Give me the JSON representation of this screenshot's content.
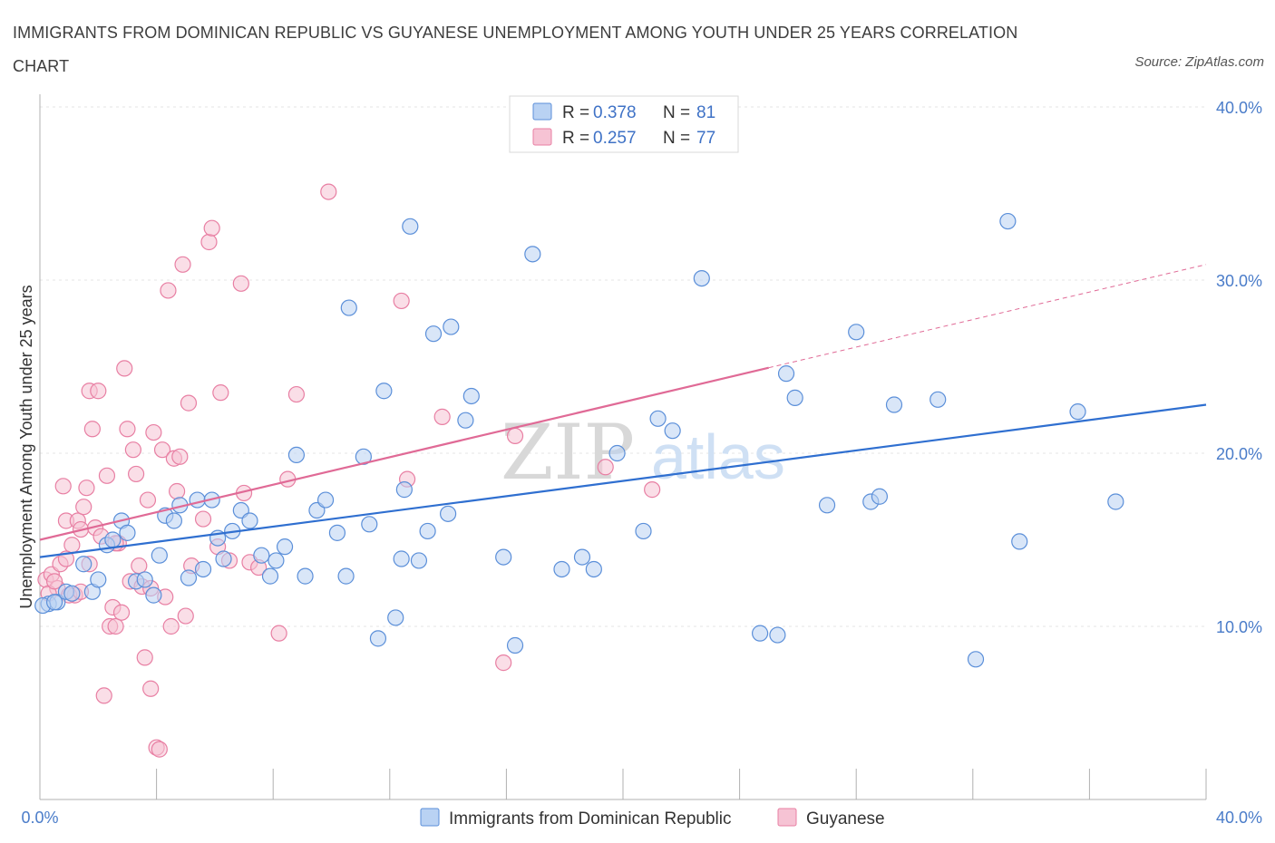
{
  "chart_data": {
    "type": "scatter",
    "title": "IMMIGRANTS FROM DOMINICAN REPUBLIC VS GUYANESE UNEMPLOYMENT AMONG YOUTH UNDER 25 YEARS CORRELATION CHART",
    "source": "Source: ZipAtlas.com",
    "xlabel": "",
    "ylabel": "Unemployment Among Youth under 25 years",
    "xlim": [
      0,
      40
    ],
    "ylim": [
      0,
      40
    ],
    "x_tick_labels": [
      "0.0%",
      "40.0%"
    ],
    "y_ticks": [
      10,
      20,
      30,
      40
    ],
    "y_tick_labels": [
      "10.0%",
      "20.0%",
      "30.0%",
      "40.0%"
    ],
    "grid": true,
    "watermark": {
      "zip": "ZIP",
      "atlas": "atlas"
    },
    "legend": {
      "r_label": "R =",
      "n_label": "N =",
      "entries": [
        {
          "r": "0.378",
          "n": "81"
        },
        {
          "r": "0.257",
          "n": "77"
        }
      ]
    },
    "series": [
      {
        "name": "Immigrants from Dominican Republic",
        "color": "#5b8fd9",
        "fill": "#b9d2f3",
        "trend": {
          "x0": 0,
          "y0": 14.0,
          "x1": 40,
          "y1": 22.8,
          "dash_from": null
        },
        "points": [
          [
            0.3,
            11.3
          ],
          [
            0.6,
            11.4
          ],
          [
            0.9,
            12.0
          ],
          [
            1.1,
            11.9
          ],
          [
            1.5,
            13.6
          ],
          [
            1.8,
            12.0
          ],
          [
            2.0,
            12.7
          ],
          [
            2.3,
            14.7
          ],
          [
            2.5,
            15.0
          ],
          [
            2.8,
            16.1
          ],
          [
            3.0,
            15.4
          ],
          [
            3.3,
            12.6
          ],
          [
            3.6,
            12.7
          ],
          [
            3.9,
            11.8
          ],
          [
            4.1,
            14.1
          ],
          [
            4.3,
            16.4
          ],
          [
            4.6,
            16.1
          ],
          [
            4.8,
            17.0
          ],
          [
            5.1,
            12.8
          ],
          [
            5.4,
            17.3
          ],
          [
            5.6,
            13.3
          ],
          [
            5.9,
            17.3
          ],
          [
            6.1,
            15.1
          ],
          [
            6.3,
            13.9
          ],
          [
            6.6,
            15.5
          ],
          [
            6.9,
            16.7
          ],
          [
            7.2,
            16.1
          ],
          [
            7.6,
            14.1
          ],
          [
            7.9,
            12.9
          ],
          [
            8.1,
            13.8
          ],
          [
            8.4,
            14.6
          ],
          [
            8.8,
            19.9
          ],
          [
            9.1,
            12.9
          ],
          [
            9.5,
            16.7
          ],
          [
            9.8,
            17.3
          ],
          [
            10.2,
            15.4
          ],
          [
            10.5,
            12.9
          ],
          [
            10.6,
            28.4
          ],
          [
            11.1,
            19.8
          ],
          [
            11.3,
            15.9
          ],
          [
            11.6,
            9.3
          ],
          [
            11.8,
            23.6
          ],
          [
            12.2,
            10.5
          ],
          [
            12.4,
            13.9
          ],
          [
            12.5,
            17.9
          ],
          [
            12.7,
            33.1
          ],
          [
            13.0,
            13.8
          ],
          [
            13.3,
            15.5
          ],
          [
            13.5,
            26.9
          ],
          [
            14.1,
            27.3
          ],
          [
            14.6,
            21.9
          ],
          [
            14.0,
            16.5
          ],
          [
            14.8,
            23.3
          ],
          [
            15.9,
            14.0
          ],
          [
            16.3,
            8.9
          ],
          [
            16.9,
            31.5
          ],
          [
            17.9,
            13.3
          ],
          [
            18.6,
            14.0
          ],
          [
            19.0,
            13.3
          ],
          [
            19.8,
            20.0
          ],
          [
            20.7,
            15.5
          ],
          [
            21.2,
            22.0
          ],
          [
            21.7,
            21.3
          ],
          [
            22.7,
            30.1
          ],
          [
            24.7,
            9.6
          ],
          [
            25.3,
            9.5
          ],
          [
            25.6,
            24.6
          ],
          [
            25.9,
            23.2
          ],
          [
            27.0,
            17.0
          ],
          [
            28.0,
            27.0
          ],
          [
            28.5,
            17.2
          ],
          [
            28.8,
            17.5
          ],
          [
            29.3,
            22.8
          ],
          [
            30.8,
            23.1
          ],
          [
            32.1,
            8.1
          ],
          [
            33.2,
            33.4
          ],
          [
            33.6,
            14.9
          ],
          [
            35.6,
            22.4
          ],
          [
            36.9,
            17.2
          ],
          [
            0.1,
            11.2
          ],
          [
            0.5,
            11.4
          ]
        ]
      },
      {
        "name": "Guyanese",
        "color": "#e87fa3",
        "fill": "#f6c3d4",
        "trend": {
          "x0": 0,
          "y0": 15.0,
          "x1": 40,
          "y1": 30.9,
          "dash_from": 25.0
        },
        "points": [
          [
            0.2,
            12.7
          ],
          [
            0.4,
            13.0
          ],
          [
            0.6,
            12.2
          ],
          [
            0.7,
            13.6
          ],
          [
            0.8,
            18.1
          ],
          [
            0.9,
            16.1
          ],
          [
            1.1,
            14.7
          ],
          [
            1.2,
            11.8
          ],
          [
            1.3,
            16.1
          ],
          [
            1.4,
            15.6
          ],
          [
            1.5,
            16.9
          ],
          [
            1.6,
            18.0
          ],
          [
            1.7,
            23.6
          ],
          [
            1.8,
            21.4
          ],
          [
            1.9,
            15.7
          ],
          [
            2.0,
            23.6
          ],
          [
            2.1,
            15.2
          ],
          [
            2.2,
            6.0
          ],
          [
            2.3,
            18.7
          ],
          [
            2.4,
            10.0
          ],
          [
            2.5,
            11.1
          ],
          [
            2.6,
            10.0
          ],
          [
            2.7,
            14.8
          ],
          [
            2.8,
            10.8
          ],
          [
            2.9,
            24.9
          ],
          [
            3.0,
            21.4
          ],
          [
            3.1,
            12.6
          ],
          [
            3.2,
            20.2
          ],
          [
            3.3,
            18.8
          ],
          [
            3.4,
            13.5
          ],
          [
            3.5,
            12.3
          ],
          [
            3.6,
            8.2
          ],
          [
            3.7,
            17.3
          ],
          [
            3.8,
            6.4
          ],
          [
            3.9,
            21.2
          ],
          [
            4.0,
            3.0
          ],
          [
            4.1,
            2.9
          ],
          [
            4.2,
            20.2
          ],
          [
            4.3,
            11.7
          ],
          [
            4.4,
            29.4
          ],
          [
            4.5,
            10.0
          ],
          [
            4.6,
            19.7
          ],
          [
            4.7,
            17.8
          ],
          [
            4.8,
            19.8
          ],
          [
            4.9,
            30.9
          ],
          [
            5.0,
            10.6
          ],
          [
            5.1,
            22.9
          ],
          [
            5.2,
            13.5
          ],
          [
            5.6,
            16.2
          ],
          [
            5.8,
            32.2
          ],
          [
            5.9,
            33.0
          ],
          [
            6.1,
            14.6
          ],
          [
            6.2,
            23.5
          ],
          [
            6.5,
            13.8
          ],
          [
            6.9,
            29.8
          ],
          [
            7.0,
            17.7
          ],
          [
            7.2,
            13.7
          ],
          [
            7.5,
            13.4
          ],
          [
            8.2,
            9.6
          ],
          [
            8.5,
            18.5
          ],
          [
            8.8,
            23.4
          ],
          [
            9.9,
            35.1
          ],
          [
            12.4,
            28.8
          ],
          [
            12.6,
            18.5
          ],
          [
            13.8,
            22.1
          ],
          [
            15.9,
            7.9
          ],
          [
            16.3,
            21.0
          ],
          [
            19.4,
            19.2
          ],
          [
            21.0,
            17.9
          ],
          [
            0.3,
            11.9
          ],
          [
            0.5,
            12.6
          ],
          [
            0.9,
            13.9
          ],
          [
            1.0,
            11.8
          ],
          [
            1.4,
            12.0
          ],
          [
            1.7,
            13.6
          ],
          [
            2.6,
            14.8
          ],
          [
            3.8,
            12.2
          ]
        ]
      }
    ],
    "bottom_legend": [
      "Immigrants from Dominican Republic",
      "Guyanese"
    ]
  }
}
